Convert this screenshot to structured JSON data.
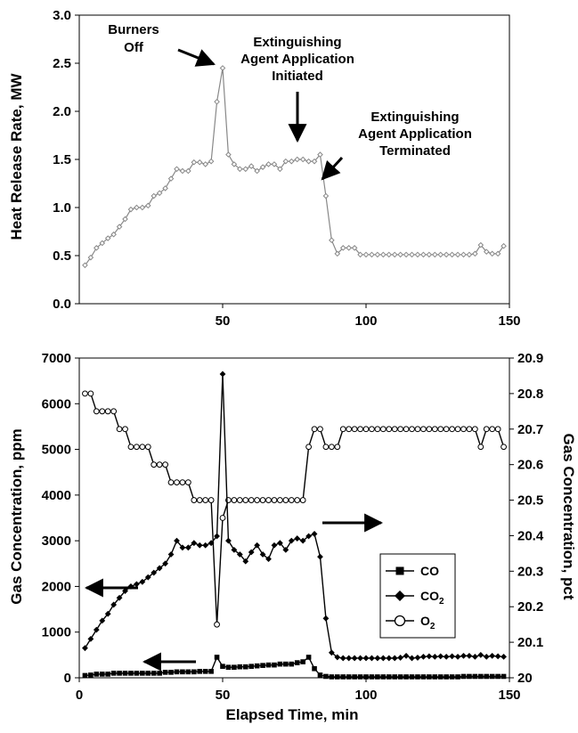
{
  "chart_data": [
    {
      "type": "line",
      "xlabel": "",
      "ylabel": "Heat Release Rate, MW",
      "xlim": [
        0,
        150
      ],
      "ylim": [
        0,
        3.0
      ],
      "xticks": [
        "50",
        "100",
        "150"
      ],
      "yticks": [
        "0.0",
        "0.5",
        "1.0",
        "1.5",
        "2.0",
        "2.5",
        "3.0"
      ],
      "grid": false,
      "annotations": [
        {
          "lines": [
            "Burners",
            "Off"
          ]
        },
        {
          "lines": [
            "Extinguishing",
            "Agent Application",
            "Initiated"
          ]
        },
        {
          "lines": [
            "Extinguishing",
            "Agent Application",
            "Terminated"
          ]
        }
      ],
      "series": [
        {
          "name": "",
          "color": "#888888",
          "marker": "diamond-open",
          "x": [
            2,
            4,
            6,
            8,
            10,
            12,
            14,
            16,
            18,
            20,
            22,
            24,
            26,
            28,
            30,
            32,
            34,
            36,
            38,
            40,
            42,
            44,
            46,
            48,
            50,
            52,
            54,
            56,
            58,
            60,
            62,
            64,
            66,
            68,
            70,
            72,
            74,
            76,
            78,
            80,
            82,
            84,
            86,
            88,
            90,
            92,
            94,
            96,
            98,
            100,
            102,
            104,
            106,
            108,
            110,
            112,
            114,
            116,
            118,
            120,
            122,
            124,
            126,
            128,
            130,
            132,
            134,
            136,
            138,
            140,
            142,
            144,
            146,
            148
          ],
          "y": [
            0.4,
            0.48,
            0.58,
            0.63,
            0.68,
            0.72,
            0.8,
            0.88,
            0.98,
            1.0,
            1.0,
            1.02,
            1.12,
            1.15,
            1.2,
            1.3,
            1.4,
            1.38,
            1.38,
            1.47,
            1.47,
            1.45,
            1.48,
            2.1,
            2.45,
            1.55,
            1.45,
            1.4,
            1.4,
            1.43,
            1.38,
            1.42,
            1.45,
            1.45,
            1.4,
            1.48,
            1.48,
            1.5,
            1.5,
            1.48,
            1.48,
            1.55,
            1.12,
            0.66,
            0.52,
            0.58,
            0.58,
            0.58,
            0.51,
            0.51,
            0.51,
            0.51,
            0.51,
            0.51,
            0.51,
            0.51,
            0.51,
            0.51,
            0.51,
            0.51,
            0.51,
            0.51,
            0.51,
            0.51,
            0.51,
            0.51,
            0.51,
            0.51,
            0.52,
            0.61,
            0.54,
            0.52,
            0.52,
            0.6
          ]
        }
      ]
    },
    {
      "type": "line",
      "xlabel": "Elapsed Time, min",
      "ylabel": "Gas Concentration, ppm",
      "y2label": "Gas Concentration, pct",
      "xlim": [
        0,
        150
      ],
      "ylim": [
        0,
        7000
      ],
      "y2lim": [
        20.0,
        20.9
      ],
      "xticks": [
        "0",
        "50",
        "100",
        "150"
      ],
      "yticks": [
        "0",
        "1000",
        "2000",
        "3000",
        "4000",
        "5000",
        "6000",
        "7000"
      ],
      "y2ticks": [
        "20",
        "20.1",
        "20.2",
        "20.3",
        "20.4",
        "20.5",
        "20.6",
        "20.7",
        "20.8",
        "20.9"
      ],
      "grid": false,
      "legend_position": "center-right",
      "series": [
        {
          "name": "CO",
          "axis": "left",
          "color": "#000000",
          "marker": "square",
          "x": [
            2,
            4,
            6,
            8,
            10,
            12,
            14,
            16,
            18,
            20,
            22,
            24,
            26,
            28,
            30,
            32,
            34,
            36,
            38,
            40,
            42,
            44,
            46,
            48,
            50,
            52,
            54,
            56,
            58,
            60,
            62,
            64,
            66,
            68,
            70,
            72,
            74,
            76,
            78,
            80,
            82,
            84,
            86,
            88,
            90,
            92,
            94,
            96,
            98,
            100,
            102,
            104,
            106,
            108,
            110,
            112,
            114,
            116,
            118,
            120,
            122,
            124,
            126,
            128,
            130,
            132,
            134,
            136,
            138,
            140,
            142,
            144,
            146,
            148
          ],
          "y": [
            50,
            60,
            80,
            80,
            80,
            100,
            100,
            100,
            100,
            100,
            100,
            100,
            100,
            100,
            120,
            120,
            130,
            130,
            130,
            130,
            140,
            140,
            140,
            450,
            250,
            230,
            230,
            240,
            240,
            250,
            260,
            270,
            280,
            280,
            300,
            300,
            300,
            330,
            350,
            450,
            200,
            60,
            30,
            20,
            20,
            20,
            20,
            20,
            20,
            20,
            20,
            20,
            20,
            20,
            20,
            20,
            20,
            20,
            20,
            20,
            20,
            20,
            20,
            20,
            20,
            20,
            30,
            30,
            30,
            30,
            30,
            30,
            30,
            30
          ]
        },
        {
          "name": "CO2",
          "axis": "left",
          "color": "#000000",
          "marker": "diamond",
          "x": [
            2,
            4,
            6,
            8,
            10,
            12,
            14,
            16,
            18,
            20,
            22,
            24,
            26,
            28,
            30,
            32,
            34,
            36,
            38,
            40,
            42,
            44,
            46,
            48,
            50,
            52,
            54,
            56,
            58,
            60,
            62,
            64,
            66,
            68,
            70,
            72,
            74,
            76,
            78,
            80,
            82,
            84,
            86,
            88,
            90,
            92,
            94,
            96,
            98,
            100,
            102,
            104,
            106,
            108,
            110,
            112,
            114,
            116,
            118,
            120,
            122,
            124,
            126,
            128,
            130,
            132,
            134,
            136,
            138,
            140,
            142,
            144,
            146,
            148
          ],
          "y": [
            650,
            850,
            1050,
            1250,
            1400,
            1600,
            1750,
            1900,
            2000,
            2050,
            2100,
            2200,
            2300,
            2400,
            2500,
            2700,
            3000,
            2850,
            2850,
            2950,
            2900,
            2900,
            2950,
            3100,
            6650,
            3000,
            2800,
            2700,
            2550,
            2750,
            2900,
            2700,
            2600,
            2900,
            2950,
            2800,
            3000,
            3050,
            3000,
            3100,
            3150,
            2650,
            1300,
            550,
            450,
            430,
            430,
            430,
            430,
            430,
            430,
            430,
            430,
            430,
            430,
            440,
            480,
            430,
            440,
            460,
            470,
            460,
            470,
            460,
            470,
            460,
            480,
            480,
            460,
            500,
            460,
            480,
            470,
            460
          ]
        },
        {
          "name": "O2",
          "axis": "right",
          "color": "#000000",
          "marker": "circle-open",
          "x": [
            2,
            4,
            6,
            8,
            10,
            12,
            14,
            16,
            18,
            20,
            22,
            24,
            26,
            28,
            30,
            32,
            34,
            36,
            38,
            40,
            42,
            44,
            46,
            48,
            50,
            52,
            54,
            56,
            58,
            60,
            62,
            64,
            66,
            68,
            70,
            72,
            74,
            76,
            78,
            80,
            82,
            84,
            86,
            88,
            90,
            92,
            94,
            96,
            98,
            100,
            102,
            104,
            106,
            108,
            110,
            112,
            114,
            116,
            118,
            120,
            122,
            124,
            126,
            128,
            130,
            132,
            134,
            136,
            138,
            140,
            142,
            144,
            146,
            148
          ],
          "y": [
            20.8,
            20.8,
            20.75,
            20.75,
            20.75,
            20.75,
            20.7,
            20.7,
            20.65,
            20.65,
            20.65,
            20.65,
            20.6,
            20.6,
            20.6,
            20.55,
            20.55,
            20.55,
            20.55,
            20.5,
            20.5,
            20.5,
            20.5,
            20.15,
            20.45,
            20.5,
            20.5,
            20.5,
            20.5,
            20.5,
            20.5,
            20.5,
            20.5,
            20.5,
            20.5,
            20.5,
            20.5,
            20.5,
            20.5,
            20.65,
            20.7,
            20.7,
            20.65,
            20.65,
            20.65,
            20.7,
            20.7,
            20.7,
            20.7,
            20.7,
            20.7,
            20.7,
            20.7,
            20.7,
            20.7,
            20.7,
            20.7,
            20.7,
            20.7,
            20.7,
            20.7,
            20.7,
            20.7,
            20.7,
            20.7,
            20.7,
            20.7,
            20.7,
            20.7,
            20.65,
            20.7,
            20.7,
            20.7,
            20.65
          ]
        }
      ]
    }
  ]
}
